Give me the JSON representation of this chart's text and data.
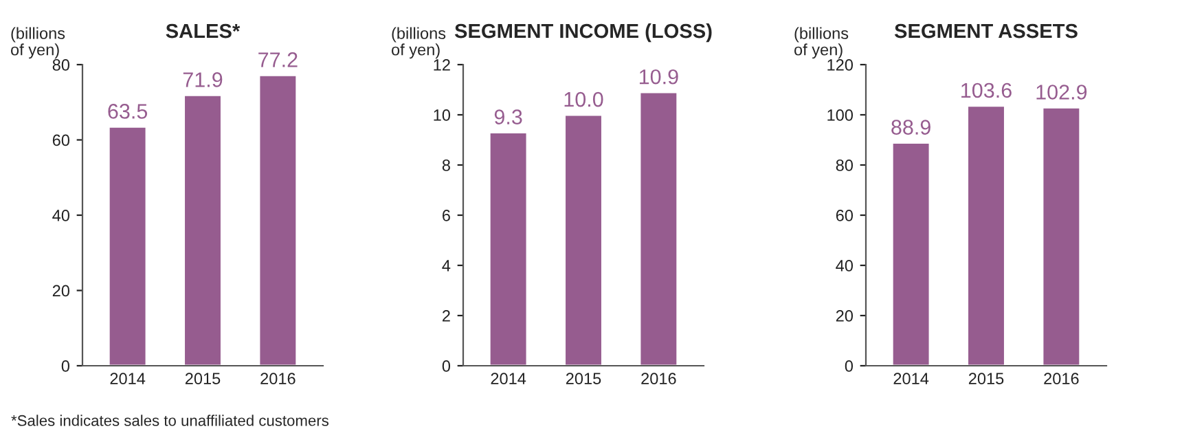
{
  "chart_data": [
    {
      "type": "bar",
      "title": "SALES*",
      "ylabel": "(billions\nof yen)",
      "categories": [
        "2014",
        "2015",
        "2016"
      ],
      "values": [
        63.5,
        71.9,
        77.2
      ],
      "color": "#965c8f",
      "ylim": [
        0,
        80
      ],
      "yticks": [
        0,
        20,
        40,
        60,
        80
      ],
      "data_labels": true,
      "grid": false,
      "legend": false,
      "annotations": [
        "*Sales indicates sales to unaffiliated customers"
      ]
    },
    {
      "type": "bar",
      "title": "SEGMENT INCOME (LOSS)",
      "ylabel": "(billions\nof yen)",
      "categories": [
        "2014",
        "2015",
        "2016"
      ],
      "values": [
        9.3,
        10.0,
        10.9
      ],
      "value_labels": [
        "9.3",
        "10.0",
        "10.9"
      ],
      "color": "#965c8f",
      "ylim": [
        0,
        12
      ],
      "yticks": [
        0,
        2,
        4,
        6,
        8,
        10,
        12
      ],
      "grid": false,
      "legend": false
    },
    {
      "type": "bar",
      "title": "SEGMENT ASSETS",
      "ylabel": "(billions\nof yen)",
      "categories": [
        "2014",
        "2015",
        "2016"
      ],
      "values": [
        88.9,
        103.6,
        102.9
      ],
      "color": "#965c8f",
      "ylim": [
        0,
        120
      ],
      "yticks": [
        0,
        20,
        40,
        60,
        80,
        100,
        120
      ],
      "data_labels": true,
      "grid": false,
      "legend": false
    }
  ]
}
